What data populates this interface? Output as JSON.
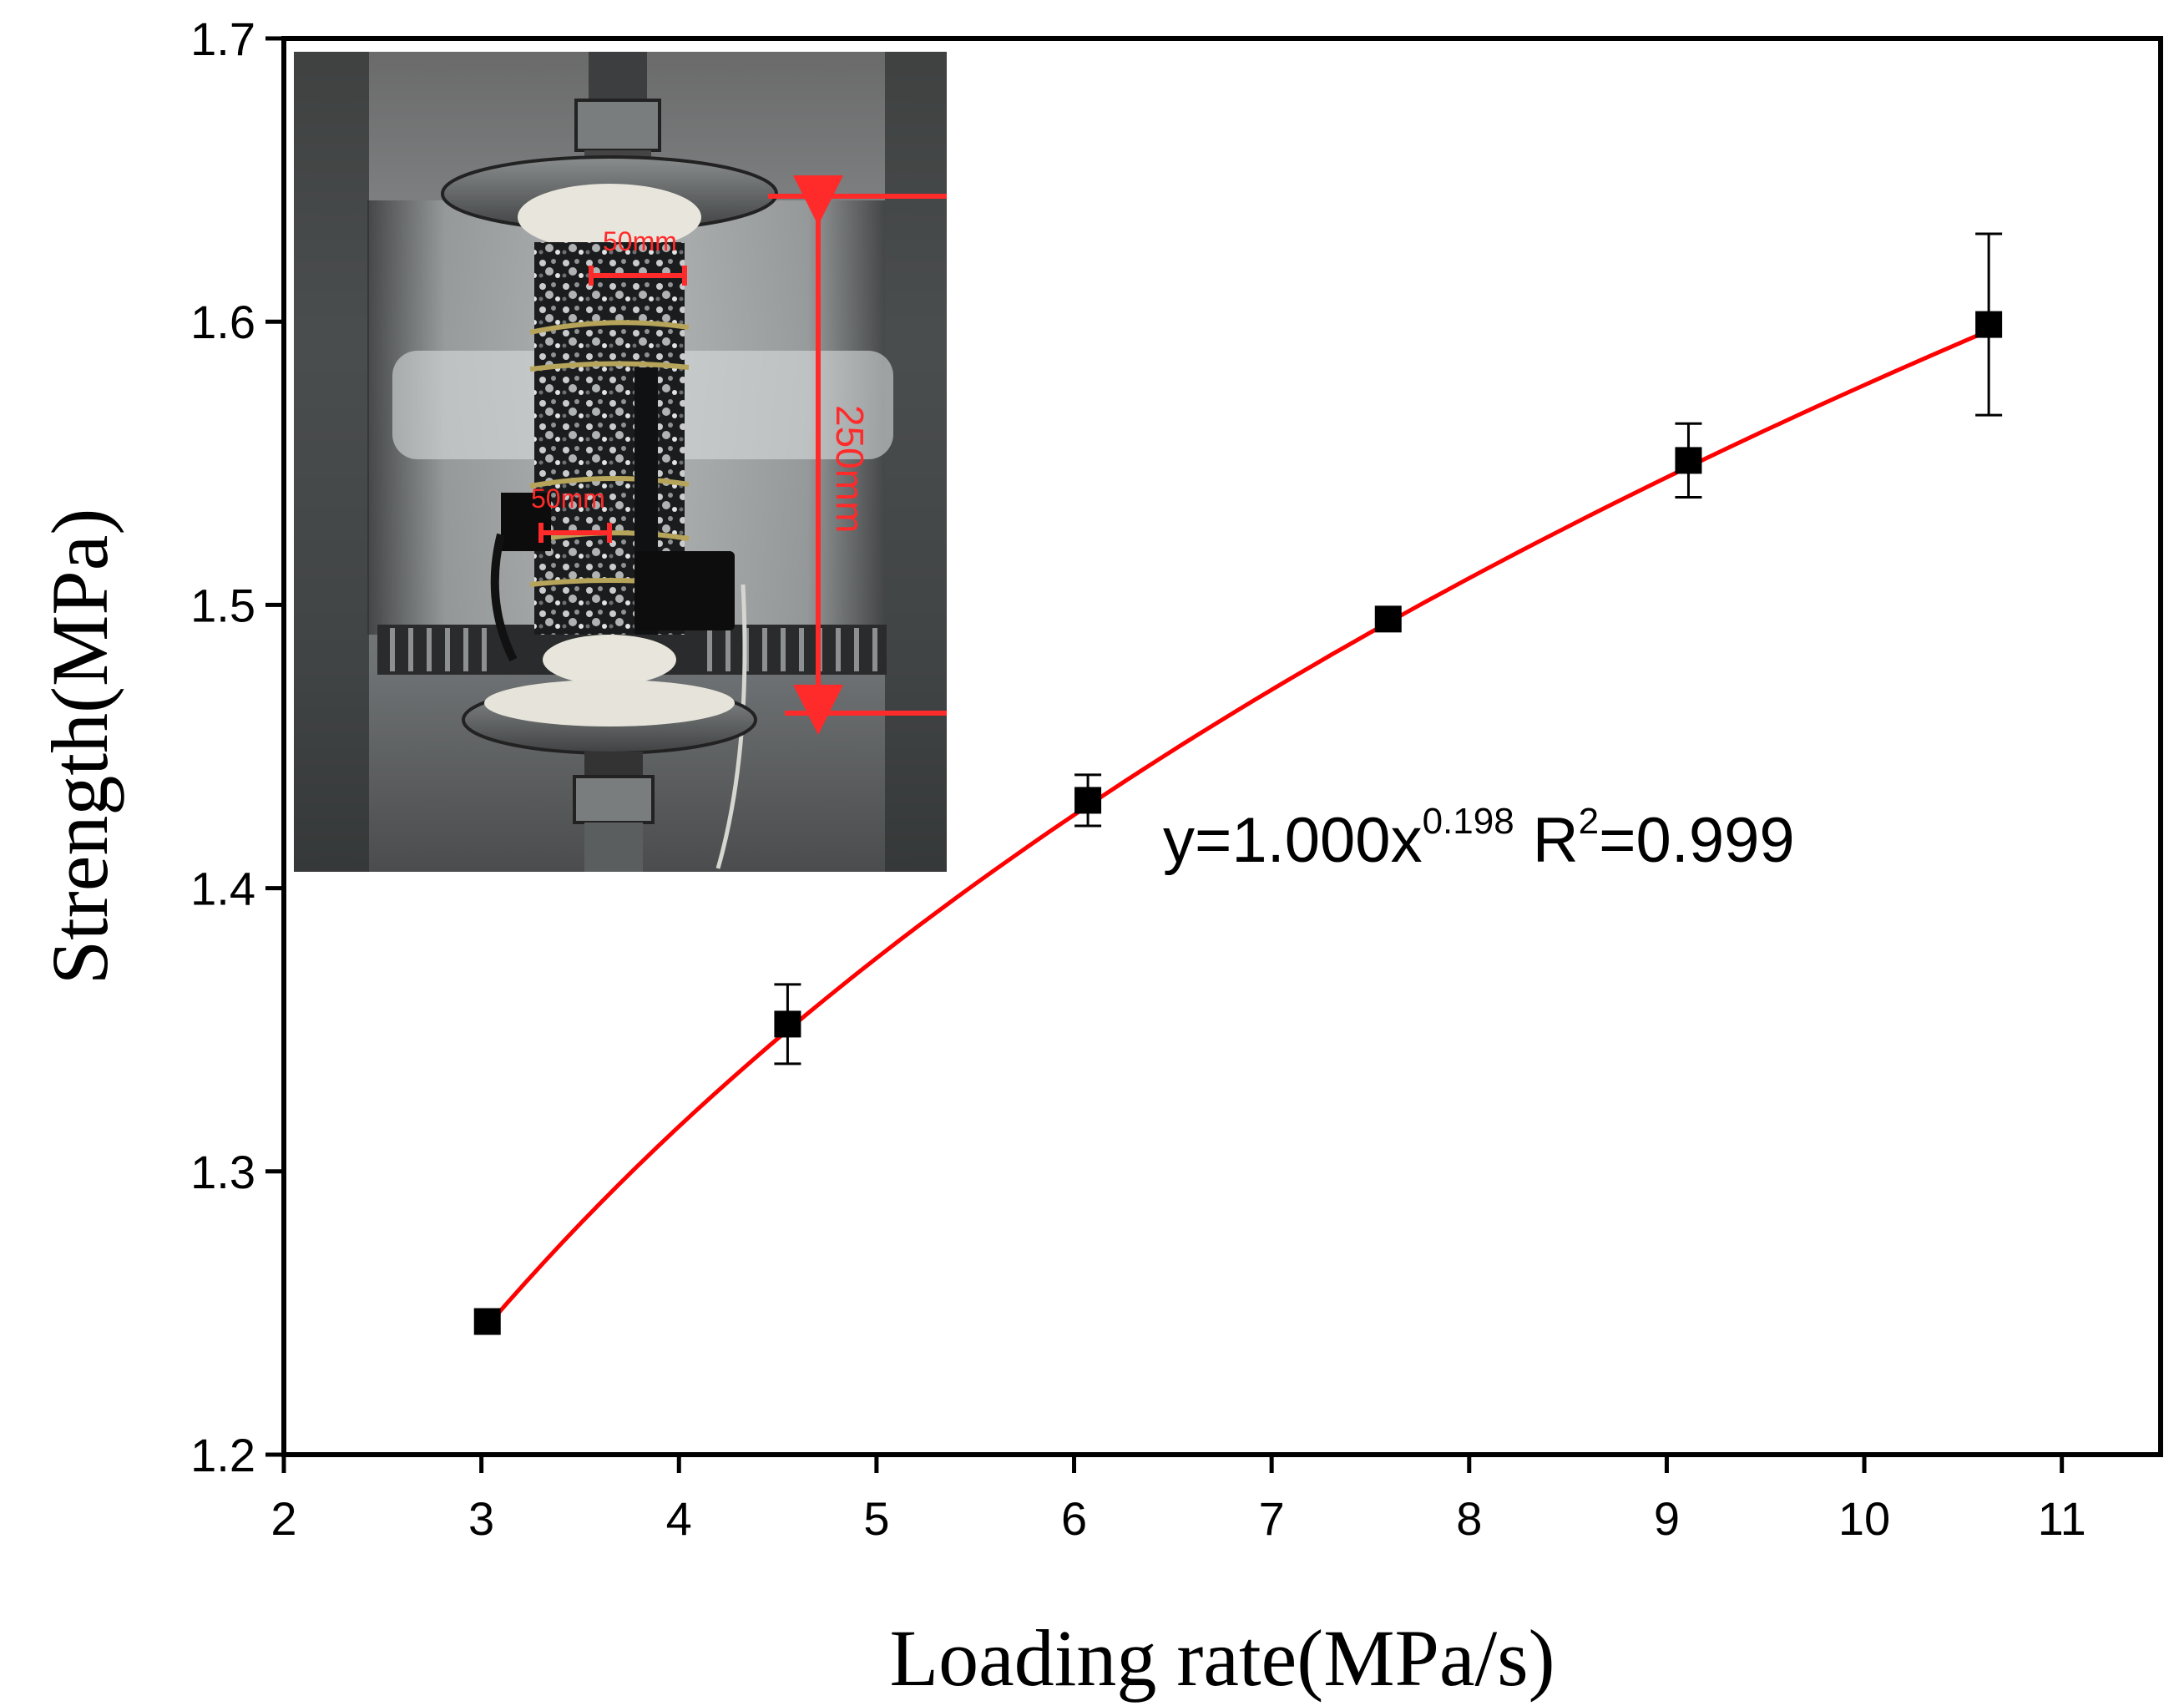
{
  "chart_data": {
    "type": "scatter",
    "xlabel": "Loading rate(MPa/s)",
    "ylabel": "Strength(MPa)",
    "xlim": [
      2,
      11.5
    ],
    "ylim": [
      1.2,
      1.7
    ],
    "xticks": [
      2,
      3,
      4,
      5,
      6,
      7,
      8,
      9,
      10,
      11
    ],
    "yticks": [
      1.2,
      1.3,
      1.4,
      1.5,
      1.6,
      1.7
    ],
    "grid": false,
    "series": [
      {
        "marker": "square",
        "color": "#000000",
        "points": [
          {
            "x": 3.03,
            "y": 1.247,
            "err": 0.0
          },
          {
            "x": 4.55,
            "y": 1.352,
            "err": 0.014
          },
          {
            "x": 6.07,
            "y": 1.431,
            "err": 0.009
          },
          {
            "x": 7.59,
            "y": 1.495,
            "err": 0.0
          },
          {
            "x": 9.11,
            "y": 1.551,
            "err": 0.013
          },
          {
            "x": 10.63,
            "y": 1.599,
            "err": 0.032
          }
        ]
      }
    ],
    "fit": {
      "color": "#ff0000",
      "coefficient": 1.0,
      "exponent": 0.198,
      "x_range": [
        3.03,
        10.63
      ]
    },
    "annotation": {
      "prefix": "y=1.000x",
      "exponent": "0.198",
      "r_label": "R",
      "r_sup": "2",
      "r_value": "=0.999"
    },
    "inset": {
      "description_icon": "specimen-photo",
      "label_width_top": "50mm",
      "label_width_side": "50mm",
      "label_height": "250mm",
      "accent": "#ff2a2a"
    }
  }
}
